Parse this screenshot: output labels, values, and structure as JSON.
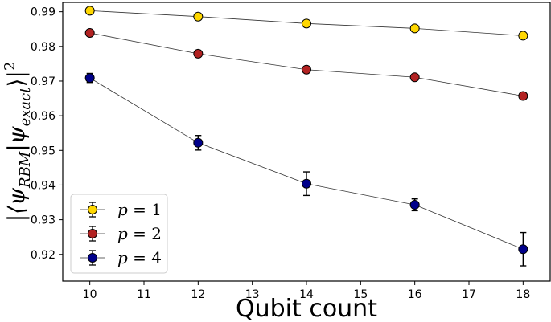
{
  "chart_data": {
    "type": "line",
    "xlabel": "Qubit count",
    "ylabel": "|⟨ψRBM|ψexact⟩|²",
    "ylabel_parts": {
      "prefix": "|⟨ψ",
      "sub1": "RBM",
      "middle": "|ψ",
      "sub2": "exact",
      "suffix": "⟩|",
      "sup": "2"
    },
    "xlim": [
      9.5,
      18.5
    ],
    "ylim": [
      0.9123,
      0.9927
    ],
    "xticks": [
      10,
      11,
      12,
      13,
      14,
      15,
      16,
      17,
      18
    ],
    "yticks": [
      0.92,
      0.93,
      0.94,
      0.95,
      0.96,
      0.97,
      0.98,
      0.99
    ],
    "grid": false,
    "legend_position": "lower-left",
    "x": [
      10,
      12,
      14,
      16,
      18
    ],
    "series": [
      {
        "name": "p = 1",
        "legend_var": "p",
        "legend_value": "1",
        "color": "#ffd700",
        "values": [
          0.9903,
          0.9886,
          0.9866,
          0.9852,
          0.9831
        ],
        "errors": [
          0.0003,
          0.0003,
          0.0003,
          0.0003,
          0.0003
        ]
      },
      {
        "name": "p = 2",
        "legend_var": "p",
        "legend_value": "2",
        "color": "#b22222",
        "values": [
          0.9839,
          0.9779,
          0.9733,
          0.9711,
          0.9657
        ],
        "errors": [
          0.0003,
          0.0005,
          0.0006,
          0.0006,
          0.0009
        ]
      },
      {
        "name": "p = 4",
        "legend_var": "p",
        "legend_value": "4",
        "color": "#00008b",
        "values": [
          0.9709,
          0.9522,
          0.9404,
          0.9343,
          0.9215
        ],
        "errors": [
          0.0013,
          0.0021,
          0.0034,
          0.0017,
          0.0048
        ]
      }
    ]
  }
}
